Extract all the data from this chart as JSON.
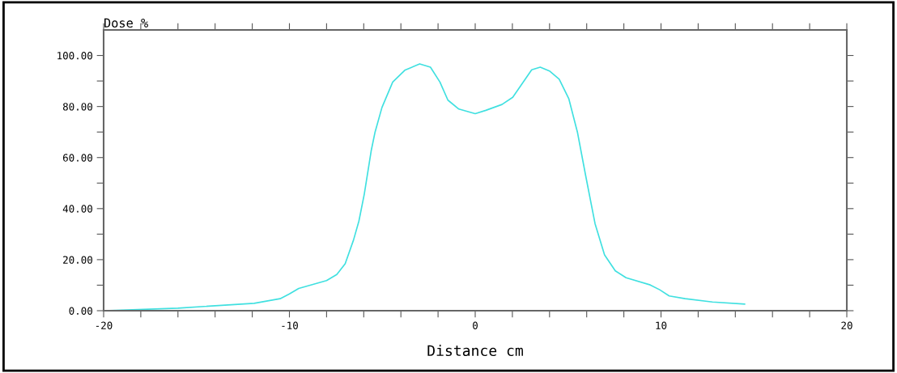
{
  "chart_data": {
    "type": "line",
    "xlabel": "Distance cm",
    "ylabel": "Dose %",
    "x": [
      -20,
      -16,
      -11.9,
      -10.5,
      -10.0,
      -9.5,
      -8.0,
      -7.45,
      -7.0,
      -6.55,
      -6.26,
      -5.97,
      -5.6,
      -5.39,
      -5.02,
      -4.44,
      -3.79,
      -2.99,
      -2.41,
      -1.9,
      -1.47,
      -0.88,
      0,
      0.57,
      1.44,
      2.02,
      3.04,
      3.5,
      4.02,
      4.52,
      5.04,
      5.5,
      5.94,
      6.45,
      6.96,
      7.54,
      8.12,
      9.42,
      9.93,
      10.44,
      11.3,
      12.77,
      14.5
    ],
    "series": [
      {
        "color": "#40e0e0",
        "values": [
          0,
          1,
          2.9,
          4.7,
          6.6,
          8.7,
          11.8,
          14.2,
          18.4,
          27.7,
          35.1,
          45.7,
          62.6,
          70,
          79.6,
          89.6,
          94.2,
          96.7,
          95.4,
          89.6,
          82.5,
          79,
          77.2,
          78.5,
          80.8,
          83.6,
          94.4,
          95.4,
          93.8,
          90.7,
          83,
          70,
          53.1,
          34.1,
          21.9,
          15.6,
          12.9,
          10.1,
          8.2,
          5.8,
          4.7,
          3.4,
          2.6
        ]
      }
    ],
    "xlim": [
      -20,
      20
    ],
    "xticks": [
      -20,
      {
        "value": -18,
        "label": null
      },
      {
        "value": -16,
        "label": null
      },
      {
        "value": -14,
        "label": null
      },
      {
        "value": -12,
        "label": null
      },
      -10,
      {
        "value": -8,
        "label": null
      },
      {
        "value": -6,
        "label": null
      },
      {
        "value": -4,
        "label": null
      },
      {
        "value": -2,
        "label": null
      },
      0,
      {
        "value": 2,
        "label": null
      },
      {
        "value": 4,
        "label": null
      },
      {
        "value": 6,
        "label": null
      },
      {
        "value": 8,
        "label": null
      },
      10,
      {
        "value": 12,
        "label": null
      },
      {
        "value": 14,
        "label": null
      },
      {
        "value": 16,
        "label": null
      },
      {
        "value": 18,
        "label": null
      },
      20
    ],
    "ylim": [
      0,
      110
    ],
    "yticks": [
      {
        "value": 0,
        "label": "0.00"
      },
      {
        "value": 10,
        "label": null
      },
      {
        "value": 20,
        "label": "20.00"
      },
      {
        "value": 30,
        "label": null
      },
      {
        "value": 40,
        "label": "40.00"
      },
      {
        "value": 50,
        "label": null
      },
      {
        "value": 60,
        "label": "60.00"
      },
      {
        "value": 70,
        "label": null
      },
      {
        "value": 80,
        "label": "80.00"
      },
      {
        "value": 90,
        "label": null
      },
      {
        "value": 100,
        "label": "100.00"
      }
    ],
    "grid": false,
    "legend": false,
    "marker": "none",
    "line_style": "solid"
  }
}
